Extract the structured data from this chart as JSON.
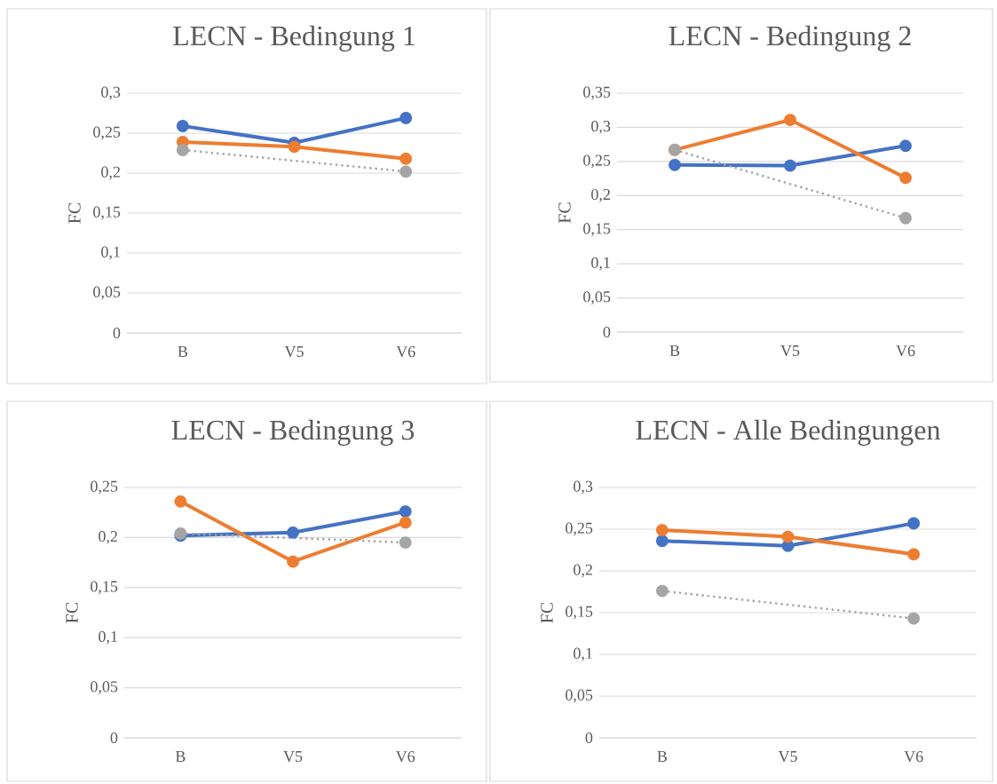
{
  "chart_data": [
    {
      "type": "line",
      "title": "LECN - Bedingung 1",
      "ylabel": "FC",
      "categories": [
        "B",
        "V5",
        "V6"
      ],
      "ylim": [
        0,
        0.3
      ],
      "yticks": [
        0,
        {
          "value": 0.05,
          "label": "0,05"
        },
        {
          "value": 0.1,
          "label": "0,1"
        },
        {
          "value": 0.15,
          "label": "0,15"
        },
        {
          "value": 0.2,
          "label": "0,2"
        },
        {
          "value": 0.25,
          "label": "0,25"
        },
        {
          "value": 0.3,
          "label": "0,3"
        }
      ],
      "grid": "y",
      "marker": "circle",
      "series": [
        {
          "color": "#4472c4",
          "values": [
            0.259,
            0.238,
            0.269
          ]
        },
        {
          "color": "#ed7d31",
          "values": [
            0.239,
            0.233,
            0.218
          ]
        },
        {
          "color": "#a5a5a5",
          "line_style": "dotted",
          "values": [
            0.229,
            null,
            0.202
          ]
        }
      ]
    },
    {
      "type": "line",
      "title": "LECN - Bedingung 2",
      "ylabel": "FC",
      "categories": [
        "B",
        "V5",
        "V6"
      ],
      "ylim": [
        0,
        0.35
      ],
      "yticks": [
        0,
        {
          "value": 0.05,
          "label": "0,05"
        },
        {
          "value": 0.1,
          "label": "0,1"
        },
        {
          "value": 0.15,
          "label": "0,15"
        },
        {
          "value": 0.2,
          "label": "0,2"
        },
        {
          "value": 0.25,
          "label": "0,25"
        },
        {
          "value": 0.3,
          "label": "0,3"
        },
        {
          "value": 0.35,
          "label": "0,35"
        }
      ],
      "grid": "y",
      "marker": "circle",
      "series": [
        {
          "color": "#4472c4",
          "values": [
            0.245,
            0.244,
            0.273
          ]
        },
        {
          "color": "#ed7d31",
          "values": [
            0.267,
            0.311,
            0.226
          ]
        },
        {
          "color": "#a5a5a5",
          "line_style": "dotted",
          "values": [
            0.267,
            null,
            0.167
          ]
        }
      ]
    },
    {
      "type": "line",
      "title": "LECN - Bedingung 3",
      "ylabel": "FC",
      "categories": [
        "B",
        "V5",
        "V6"
      ],
      "ylim": [
        0,
        0.25
      ],
      "yticks": [
        0,
        {
          "value": 0.05,
          "label": "0,05"
        },
        {
          "value": 0.1,
          "label": "0,1"
        },
        {
          "value": 0.15,
          "label": "0,15"
        },
        {
          "value": 0.2,
          "label": "0,2"
        },
        {
          "value": 0.25,
          "label": "0,25"
        }
      ],
      "grid": "y",
      "marker": "circle",
      "series": [
        {
          "color": "#4472c4",
          "values": [
            0.202,
            0.205,
            0.226
          ]
        },
        {
          "color": "#ed7d31",
          "values": [
            0.236,
            0.176,
            0.215
          ]
        },
        {
          "color": "#a5a5a5",
          "line_style": "dotted",
          "values": [
            0.204,
            null,
            0.195
          ]
        }
      ]
    },
    {
      "type": "line",
      "title": "LECN - Alle Bedingungen",
      "ylabel": "FC",
      "categories": [
        "B",
        "V5",
        "V6"
      ],
      "ylim": [
        0,
        0.3
      ],
      "yticks": [
        0,
        {
          "value": 0.05,
          "label": "0,05"
        },
        {
          "value": 0.1,
          "label": "0,1"
        },
        {
          "value": 0.15,
          "label": "0,15"
        },
        {
          "value": 0.2,
          "label": "0,2"
        },
        {
          "value": 0.25,
          "label": "0,25"
        },
        {
          "value": 0.3,
          "label": "0,3"
        }
      ],
      "grid": "y",
      "marker": "circle",
      "series": [
        {
          "color": "#4472c4",
          "values": [
            0.236,
            0.23,
            0.257
          ]
        },
        {
          "color": "#ed7d31",
          "values": [
            0.249,
            0.241,
            0.22
          ]
        },
        {
          "color": "#a5a5a5",
          "line_style": "dotted",
          "values": [
            0.176,
            null,
            0.143
          ]
        }
      ]
    }
  ]
}
